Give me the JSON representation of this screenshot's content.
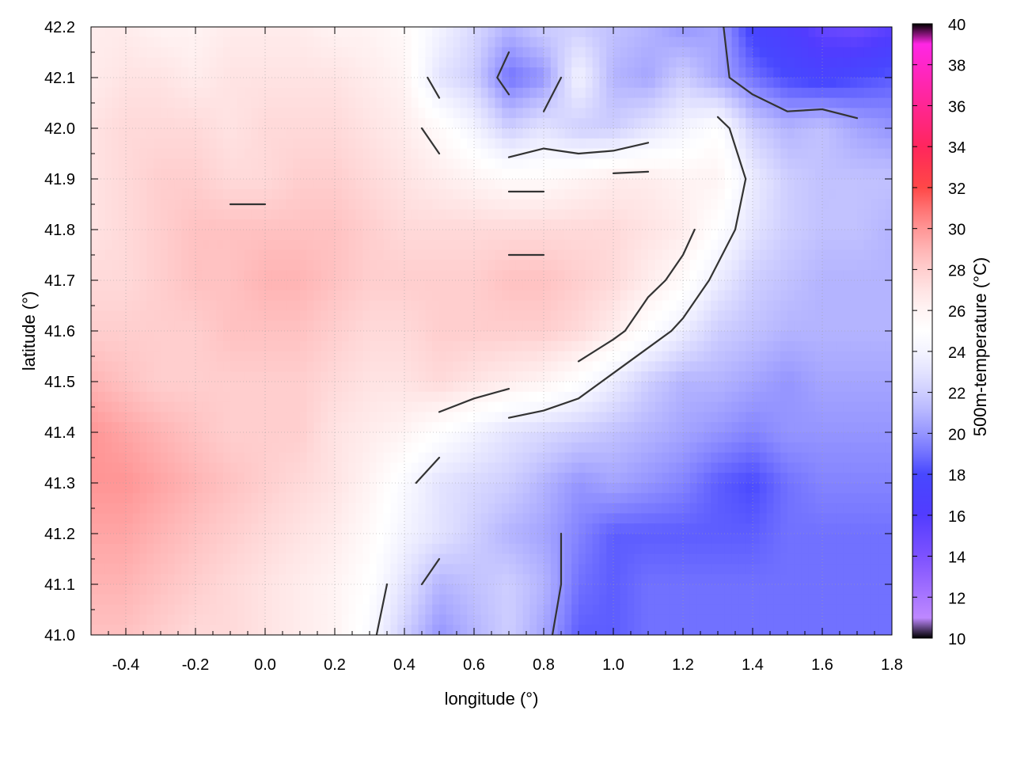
{
  "chart_data": {
    "type": "heatmap",
    "title": "",
    "xlabel": "longitude (°)",
    "ylabel": "latitude (°)",
    "xlim": [
      -0.5,
      1.8
    ],
    "ylim": [
      41.0,
      42.2
    ],
    "xticks": [
      "-0.4",
      "-0.2",
      "0.0",
      "0.2",
      "0.4",
      "0.6",
      "0.8",
      "1.0",
      "1.2",
      "1.4",
      "1.6",
      "1.8"
    ],
    "yticks": [
      "41.0",
      "41.1",
      "41.2",
      "41.3",
      "41.4",
      "41.5",
      "41.6",
      "41.7",
      "41.8",
      "41.9",
      "42.0",
      "42.1",
      "42.2"
    ],
    "grid": true,
    "colorbar": {
      "label": "500m-temperature (°C)",
      "range": [
        10,
        40
      ],
      "ticks": [
        "10",
        "12",
        "14",
        "16",
        "18",
        "20",
        "22",
        "24",
        "26",
        "28",
        "30",
        "32",
        "34",
        "36",
        "38",
        "40"
      ],
      "colors": [
        "#cc88ff",
        "#6633ff",
        "#0000ff",
        "#ffffff",
        "#ff0000",
        "#ff00ff"
      ],
      "stops": [
        10,
        14,
        18,
        25,
        32,
        40
      ]
    },
    "grid_lon": [
      -0.5,
      -0.4,
      -0.3,
      -0.2,
      -0.1,
      0.0,
      0.1,
      0.2,
      0.3,
      0.4,
      0.5,
      0.6,
      0.7,
      0.8,
      0.9,
      1.0,
      1.1,
      1.2,
      1.3,
      1.4,
      1.5,
      1.6,
      1.7,
      1.8
    ],
    "grid_lat": [
      42.2,
      42.1,
      42.0,
      41.9,
      41.8,
      41.7,
      41.6,
      41.5,
      41.4,
      41.3,
      41.2,
      41.1,
      41.0
    ],
    "values": [
      [
        26.5,
        26.5,
        26.0,
        26.0,
        26.5,
        26.5,
        26.5,
        26.0,
        26.0,
        25.5,
        24.0,
        22.5,
        21.0,
        22.0,
        22.0,
        21.5,
        21.0,
        20.0,
        20.5,
        17.5,
        16.5,
        15.0,
        14.5,
        15.5
      ],
      [
        26.5,
        27.0,
        27.0,
        26.5,
        27.0,
        27.0,
        27.0,
        27.0,
        26.5,
        26.0,
        23.0,
        22.0,
        19.0,
        20.0,
        24.0,
        21.0,
        20.5,
        22.0,
        20.5,
        19.0,
        18.0,
        17.5,
        18.0,
        18.5
      ],
      [
        27.0,
        27.5,
        27.5,
        27.5,
        27.0,
        27.5,
        27.5,
        27.5,
        27.0,
        26.5,
        25.5,
        24.0,
        22.0,
        23.0,
        22.0,
        22.0,
        23.0,
        24.0,
        25.0,
        22.0,
        21.0,
        21.5,
        20.5,
        20.0
      ],
      [
        27.0,
        27.5,
        28.0,
        28.0,
        27.5,
        27.5,
        28.0,
        28.0,
        27.5,
        27.0,
        26.5,
        26.0,
        25.5,
        25.5,
        26.0,
        26.5,
        26.5,
        26.0,
        26.0,
        23.5,
        22.0,
        21.5,
        21.5,
        21.5
      ],
      [
        27.0,
        27.5,
        28.0,
        28.5,
        28.5,
        28.5,
        28.5,
        28.5,
        28.0,
        27.5,
        27.5,
        27.5,
        27.5,
        27.5,
        27.5,
        27.5,
        27.0,
        26.5,
        25.0,
        23.0,
        22.0,
        21.5,
        21.5,
        21.0
      ],
      [
        27.5,
        27.5,
        28.0,
        28.5,
        28.5,
        29.0,
        29.0,
        28.5,
        28.0,
        28.0,
        28.0,
        28.0,
        28.5,
        28.5,
        28.0,
        27.5,
        26.5,
        25.5,
        23.5,
        22.0,
        21.5,
        21.0,
        21.0,
        21.0
      ],
      [
        28.0,
        28.0,
        28.0,
        28.0,
        28.5,
        28.5,
        28.5,
        28.0,
        27.5,
        27.5,
        28.0,
        28.0,
        28.0,
        28.0,
        27.5,
        26.5,
        25.0,
        23.5,
        22.0,
        21.5,
        21.0,
        21.0,
        21.0,
        21.0
      ],
      [
        29.0,
        28.5,
        28.0,
        28.0,
        28.0,
        28.0,
        28.0,
        27.5,
        27.0,
        27.0,
        27.5,
        27.0,
        26.5,
        26.0,
        25.0,
        23.5,
        22.0,
        21.0,
        21.0,
        20.5,
        20.0,
        20.5,
        20.5,
        20.5
      ],
      [
        30.0,
        29.5,
        29.0,
        28.5,
        28.0,
        28.0,
        28.0,
        27.0,
        26.5,
        26.0,
        25.0,
        24.0,
        23.0,
        22.5,
        22.0,
        21.5,
        21.0,
        20.5,
        20.0,
        19.5,
        20.0,
        20.0,
        20.0,
        20.0
      ],
      [
        30.0,
        30.0,
        29.5,
        29.0,
        28.5,
        28.0,
        27.5,
        27.0,
        26.0,
        24.5,
        23.0,
        22.5,
        22.0,
        21.0,
        20.0,
        20.5,
        20.0,
        19.5,
        18.5,
        18.0,
        19.0,
        19.5,
        19.5,
        19.5
      ],
      [
        29.5,
        29.5,
        29.0,
        28.5,
        28.0,
        27.5,
        27.0,
        26.5,
        25.5,
        24.0,
        23.0,
        22.0,
        21.0,
        20.5,
        19.5,
        18.5,
        18.5,
        18.5,
        18.5,
        18.5,
        19.0,
        19.0,
        19.0,
        19.0
      ],
      [
        29.0,
        29.0,
        28.5,
        28.0,
        27.5,
        27.0,
        26.5,
        26.0,
        25.0,
        23.0,
        21.0,
        21.5,
        22.0,
        21.0,
        19.0,
        18.5,
        19.0,
        19.0,
        19.0,
        19.0,
        19.0,
        19.0,
        19.0,
        19.0
      ],
      [
        28.5,
        28.5,
        28.0,
        27.5,
        27.5,
        27.0,
        26.5,
        26.0,
        24.5,
        22.0,
        20.0,
        21.0,
        22.0,
        20.5,
        18.5,
        18.5,
        19.0,
        19.0,
        19.0,
        19.0,
        19.0,
        19.0,
        19.0,
        19.0
      ]
    ]
  }
}
